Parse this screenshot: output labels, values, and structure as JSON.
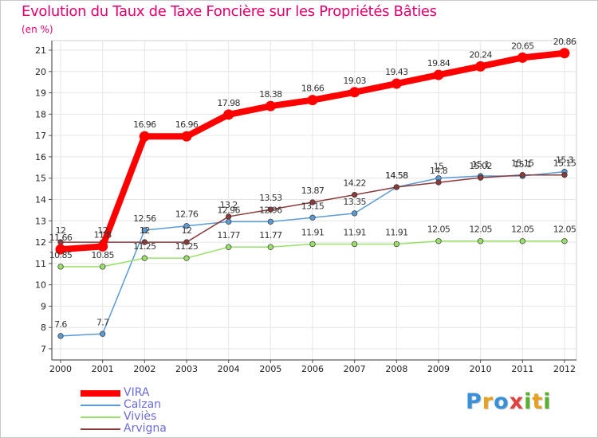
{
  "header": {
    "title": "Evolution du Taux de Taxe Foncière sur les Propriétés Bâties",
    "unit": "(en %)"
  },
  "logo": {
    "text": "Proxiti"
  },
  "chart_data": {
    "type": "line",
    "title": "Evolution du Taux de Taxe Foncière sur les Propriétés Bâties",
    "ylabel": "(en %)",
    "xlabel": "",
    "ylim": [
      7,
      21
    ],
    "grid": true,
    "categories": [
      "2000",
      "2001",
      "2002",
      "2003",
      "2004",
      "2005",
      "2006",
      "2007",
      "2008",
      "2009",
      "2010",
      "2011",
      "2012"
    ],
    "yticks": [
      7,
      8,
      9,
      10,
      11,
      12,
      13,
      14,
      15,
      16,
      17,
      18,
      19,
      20,
      21
    ],
    "series": [
      {
        "name": "VIRA",
        "color": "#ff0000",
        "values": [
          11.66,
          11.8,
          16.96,
          16.96,
          17.98,
          18.38,
          18.66,
          19.03,
          19.43,
          19.84,
          20.24,
          20.65,
          20.86
        ],
        "labels": [
          "11.66",
          "11.8",
          "16.96",
          "16.96",
          "17.98",
          "18.38",
          "18.66",
          "19.03",
          "19.43",
          "19.84",
          "20.24",
          "20.65",
          "20.86"
        ]
      },
      {
        "name": "Calzan",
        "color": "#5b9bd5",
        "values": [
          7.6,
          7.7,
          12.56,
          12.76,
          12.96,
          12.96,
          13.15,
          13.35,
          14.58,
          15,
          15.1,
          15.1,
          15.3
        ],
        "labels": [
          "7.6",
          "7.7",
          "12.56",
          "12.76",
          "12.96",
          "12.96",
          "13.15",
          "13.35",
          "14.58",
          "15",
          "15.1",
          "15.1",
          "15.3"
        ]
      },
      {
        "name": "Viviès",
        "color": "#99e06a",
        "values": [
          10.85,
          10.85,
          11.25,
          11.25,
          11.77,
          11.77,
          11.91,
          11.91,
          11.91,
          12.05,
          12.05,
          12.05,
          12.05
        ],
        "labels": [
          "10.85",
          "10.85",
          "11.25",
          "11.25",
          "11.77",
          "11.77",
          "11.91",
          "11.91",
          "11.91",
          "12.05",
          "12.05",
          "12.05",
          "12.05"
        ]
      },
      {
        "name": "Arvigna",
        "color": "#8b3a3a",
        "values": [
          12,
          12,
          12,
          12,
          13.2,
          13.53,
          13.87,
          14.22,
          14.58,
          14.8,
          15.02,
          15.15,
          15.15
        ],
        "labels": [
          "12",
          "12",
          "12",
          "12",
          "13.2",
          "13.53",
          "13.87",
          "14.22",
          "14.58",
          "14.8",
          "15.02",
          "15.15",
          "15.15"
        ]
      }
    ]
  }
}
